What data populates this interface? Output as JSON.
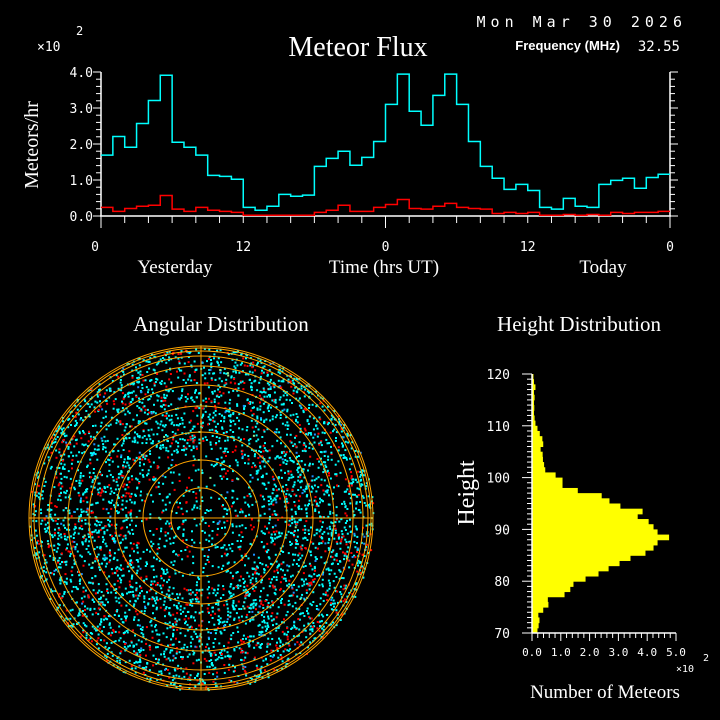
{
  "header": {
    "date": "Mon Mar 30 2026",
    "frequency_label": "Frequency (MHz)",
    "frequency_value": "32.55"
  },
  "chart_data": [
    {
      "type": "line",
      "step": true,
      "title": "Meteor Flux",
      "ylabel": "Meteors/hr",
      "xlabel": "Time (hrs UT)",
      "x_group_labels": [
        "Yesterday",
        "Today"
      ],
      "y_multiplier": "×10",
      "y_multiplier_exp": "2",
      "ylim": [
        0,
        4.0
      ],
      "yticks": [
        "0.0",
        "1.0",
        "2.0",
        "3.0",
        "4.0"
      ],
      "xticks": [
        "0",
        "12",
        "0",
        "12",
        "0"
      ],
      "x_hours": [
        0,
        1,
        2,
        3,
        4,
        5,
        6,
        7,
        8,
        9,
        10,
        11,
        12,
        13,
        14,
        15,
        16,
        17,
        18,
        19,
        20,
        21,
        22,
        23,
        24,
        25,
        26,
        27,
        28,
        29,
        30,
        31,
        32,
        33,
        34,
        35,
        36,
        37,
        38,
        39,
        40,
        41,
        42,
        43,
        44,
        45,
        46,
        47
      ],
      "series": [
        {
          "color": "#00ffff",
          "values": [
            1.69,
            2.21,
            1.91,
            2.57,
            3.21,
            3.91,
            2.05,
            1.91,
            1.69,
            1.13,
            1.1,
            1.02,
            0.24,
            0.16,
            0.27,
            0.6,
            0.55,
            0.58,
            1.38,
            1.6,
            1.8,
            1.41,
            1.63,
            2.07,
            3.1,
            3.94,
            2.91,
            2.52,
            3.35,
            3.94,
            3.1,
            2.07,
            1.38,
            1.05,
            0.74,
            0.88,
            0.71,
            0.24,
            0.19,
            0.49,
            0.27,
            0.24,
            0.88,
            0.99,
            1.05,
            0.77,
            1.07,
            1.16
          ]
        },
        {
          "color": "#ff0000",
          "values": [
            0.24,
            0.13,
            0.21,
            0.27,
            0.3,
            0.57,
            0.19,
            0.13,
            0.24,
            0.16,
            0.13,
            0.1,
            0.02,
            0.02,
            0.02,
            0.02,
            0.02,
            0.02,
            0.1,
            0.16,
            0.3,
            0.13,
            0.13,
            0.24,
            0.32,
            0.46,
            0.21,
            0.19,
            0.27,
            0.35,
            0.24,
            0.21,
            0.19,
            0.07,
            0.1,
            0.07,
            0.1,
            0.02,
            0.02,
            0.04,
            0.02,
            0.04,
            0.02,
            0.1,
            0.07,
            0.1,
            0.1,
            0.13
          ]
        }
      ]
    },
    {
      "type": "scatter",
      "projection": "polar",
      "title": "Angular Distribution",
      "ring_color": "#ffa500",
      "series_colors": [
        "#00ffff",
        "#ff0000",
        "#1e90ff",
        "#90ee90"
      ]
    },
    {
      "type": "bar",
      "orientation": "horizontal",
      "title": "Height Distribution",
      "ylabel": "Height",
      "xlabel": "Number of Meteors",
      "x_multiplier": "×10",
      "x_multiplier_exp": "2",
      "xlim": [
        0,
        5.0
      ],
      "ylim": [
        70,
        120
      ],
      "xticks": [
        "0.0",
        "1.0",
        "2.0",
        "3.0",
        "4.0",
        "5.0"
      ],
      "yticks": [
        "70",
        "80",
        "90",
        "100",
        "110",
        "120"
      ],
      "color": "#ffff00",
      "heights": [
        70,
        71,
        72,
        73,
        74,
        75,
        76,
        77,
        78,
        79,
        80,
        81,
        82,
        83,
        84,
        85,
        86,
        87,
        88,
        89,
        90,
        91,
        92,
        93,
        94,
        95,
        96,
        97,
        98,
        99,
        100,
        101,
        102,
        103,
        104,
        105,
        106,
        107,
        108,
        109,
        110,
        111,
        112,
        113,
        114,
        115,
        116,
        117,
        118,
        119
      ],
      "values": [
        0.19,
        0.23,
        0.26,
        0.22,
        0.39,
        0.57,
        0.55,
        1.13,
        1.33,
        1.44,
        1.86,
        2.31,
        2.66,
        3.04,
        3.42,
        3.94,
        4.22,
        4.36,
        4.76,
        4.36,
        4.22,
        4.05,
        3.67,
        3.84,
        3.07,
        2.69,
        2.42,
        1.59,
        1.06,
        1.06,
        0.82,
        0.46,
        0.42,
        0.38,
        0.37,
        0.3,
        0.39,
        0.36,
        0.27,
        0.19,
        0.12,
        0.09,
        0.07,
        0.08,
        0.07,
        0.09,
        0.07,
        0.12,
        0.07,
        0.05
      ]
    }
  ]
}
